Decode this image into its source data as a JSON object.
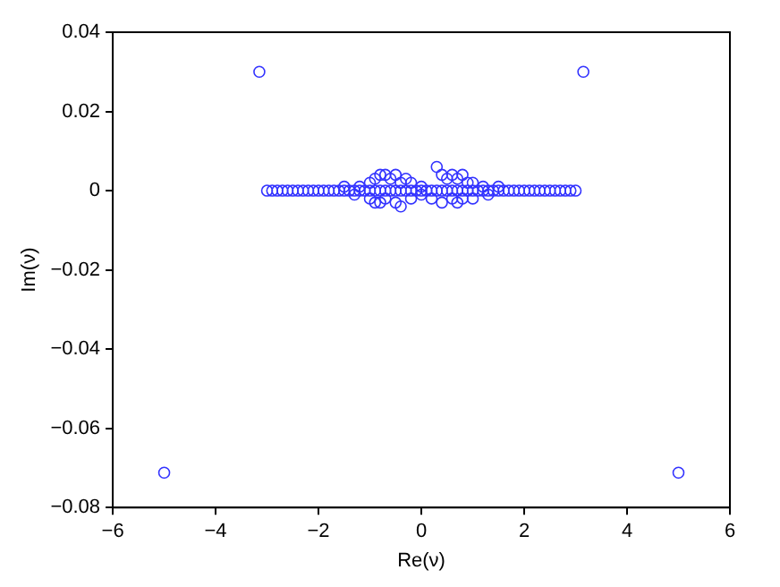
{
  "chart_data": {
    "type": "scatter",
    "xlabel": "Re(ν)",
    "ylabel": "Im(ν)",
    "xlim": [
      -6,
      6
    ],
    "xticks": [
      -6,
      -4,
      -2,
      0,
      2,
      4,
      6
    ],
    "ylim": [
      -0.08,
      0.04
    ],
    "yticks": [
      -0.08,
      -0.06,
      -0.04,
      -0.02,
      0,
      0.02,
      0.04
    ],
    "grid": false,
    "legend": false,
    "marker": "circle",
    "series": [
      {
        "color": "#3333ff",
        "x": [
          -3.15,
          3.15,
          -5.0,
          5.0,
          -3.0,
          -2.9,
          -2.8,
          -2.7,
          -2.6,
          -2.5,
          -2.4,
          -2.3,
          -2.2,
          -2.1,
          -2.0,
          -1.9,
          -1.8,
          -1.7,
          -1.6,
          -1.5,
          -1.4,
          -1.3,
          -1.2,
          -1.1,
          -1.0,
          -0.9,
          -0.8,
          -0.7,
          -0.6,
          -0.5,
          -0.4,
          -0.3,
          -0.2,
          -0.1,
          0.0,
          0.1,
          0.2,
          0.3,
          0.4,
          0.5,
          0.6,
          0.7,
          0.8,
          0.9,
          1.0,
          1.1,
          1.2,
          1.3,
          1.4,
          1.5,
          1.6,
          1.7,
          1.8,
          1.9,
          2.0,
          2.1,
          2.2,
          2.3,
          2.4,
          2.5,
          2.6,
          2.7,
          2.8,
          2.9,
          3.0,
          -1.0,
          -0.9,
          -0.8,
          -0.7,
          -0.6,
          -0.5,
          -0.4,
          -0.3,
          -0.2,
          0.3,
          0.4,
          0.5,
          0.6,
          0.7,
          0.8,
          0.9,
          1.0,
          -1.2,
          1.2,
          -1.5,
          1.5,
          -1.0,
          -0.9,
          -0.8,
          -0.7,
          -0.5,
          -0.4,
          -0.2,
          0.2,
          0.4,
          0.6,
          0.7,
          0.8,
          1.0,
          -1.3,
          1.3,
          0.0,
          0.0
        ],
        "values": [
          0.03,
          0.03,
          -0.0712,
          -0.0712,
          0,
          0,
          0,
          0,
          0,
          0,
          0,
          0,
          0,
          0,
          0,
          0,
          0,
          0,
          0,
          0,
          0,
          0,
          0,
          0,
          0,
          0,
          0,
          0,
          0,
          0,
          0,
          0,
          0,
          0,
          0,
          0,
          0,
          0,
          0,
          0,
          0,
          0,
          0,
          0,
          0,
          0,
          0,
          0,
          0,
          0,
          0,
          0,
          0,
          0,
          0,
          0,
          0,
          0,
          0,
          0,
          0,
          0,
          0,
          0,
          0,
          0.002,
          0.003,
          0.004,
          0.004,
          0.003,
          0.004,
          0.002,
          0.003,
          0.002,
          0.006,
          0.004,
          0.003,
          0.004,
          0.003,
          0.004,
          0.002,
          0.002,
          0.001,
          0.001,
          0.001,
          0.001,
          -0.002,
          -0.003,
          -0.003,
          -0.002,
          -0.003,
          -0.004,
          -0.002,
          -0.002,
          -0.003,
          -0.002,
          -0.003,
          -0.002,
          -0.002,
          -0.001,
          -0.001,
          0.001,
          -0.001
        ]
      }
    ]
  }
}
